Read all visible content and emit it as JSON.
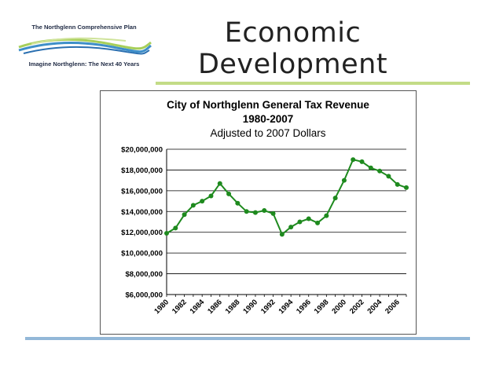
{
  "logo": {
    "top_text": "The Northglenn Comprehensive Plan",
    "bottom_text": "Imagine Northglenn: The Next 40 Years"
  },
  "slide": {
    "title_line1": "Economic",
    "title_line2": "Development"
  },
  "colors": {
    "series": "#1e8a1e",
    "top_rule": "#c3dc87",
    "bottom_rule": "#93b8d8"
  },
  "chart_data": {
    "type": "line",
    "title": "City of Northglenn General Tax Revenue",
    "title_line2": "1980-2007",
    "subtitle": "Adjusted to 2007 Dollars",
    "xlabel": "",
    "ylabel": "",
    "ylim": [
      6000000,
      20000000
    ],
    "y_ticks": [
      {
        "value": 6000000,
        "label": "$6,000,000"
      },
      {
        "value": 8000000,
        "label": "$8,000,000"
      },
      {
        "value": 10000000,
        "label": "$10,000,000"
      },
      {
        "value": 12000000,
        "label": "$12,000,000"
      },
      {
        "value": 14000000,
        "label": "$14,000,000"
      },
      {
        "value": 16000000,
        "label": "$16,000,000"
      },
      {
        "value": 18000000,
        "label": "$18,000,000"
      },
      {
        "value": 20000000,
        "label": "$20,000,000"
      }
    ],
    "x_tick_labels": [
      "1980",
      "1982",
      "1984",
      "1986",
      "1988",
      "1990",
      "1992",
      "1994",
      "1996",
      "1998",
      "2000",
      "2002",
      "2004",
      "2006"
    ],
    "grid": "horizontal",
    "legend": "none",
    "series": [
      {
        "x": [
          1980,
          1981,
          1982,
          1983,
          1984,
          1985,
          1986,
          1987,
          1988,
          1989,
          1990,
          1991,
          1992,
          1993,
          1994,
          1995,
          1996,
          1997,
          1998,
          1999,
          2000,
          2001,
          2002,
          2003,
          2004,
          2005,
          2006,
          2007
        ],
        "values": [
          11900000,
          12400000,
          13700000,
          14600000,
          15000000,
          15500000,
          16700000,
          15700000,
          14800000,
          14000000,
          13900000,
          14100000,
          13800000,
          11800000,
          12500000,
          13000000,
          13300000,
          12900000,
          13600000,
          15300000,
          17000000,
          19000000,
          18800000,
          18200000,
          17900000,
          17400000,
          16600000,
          16300000
        ]
      }
    ]
  }
}
